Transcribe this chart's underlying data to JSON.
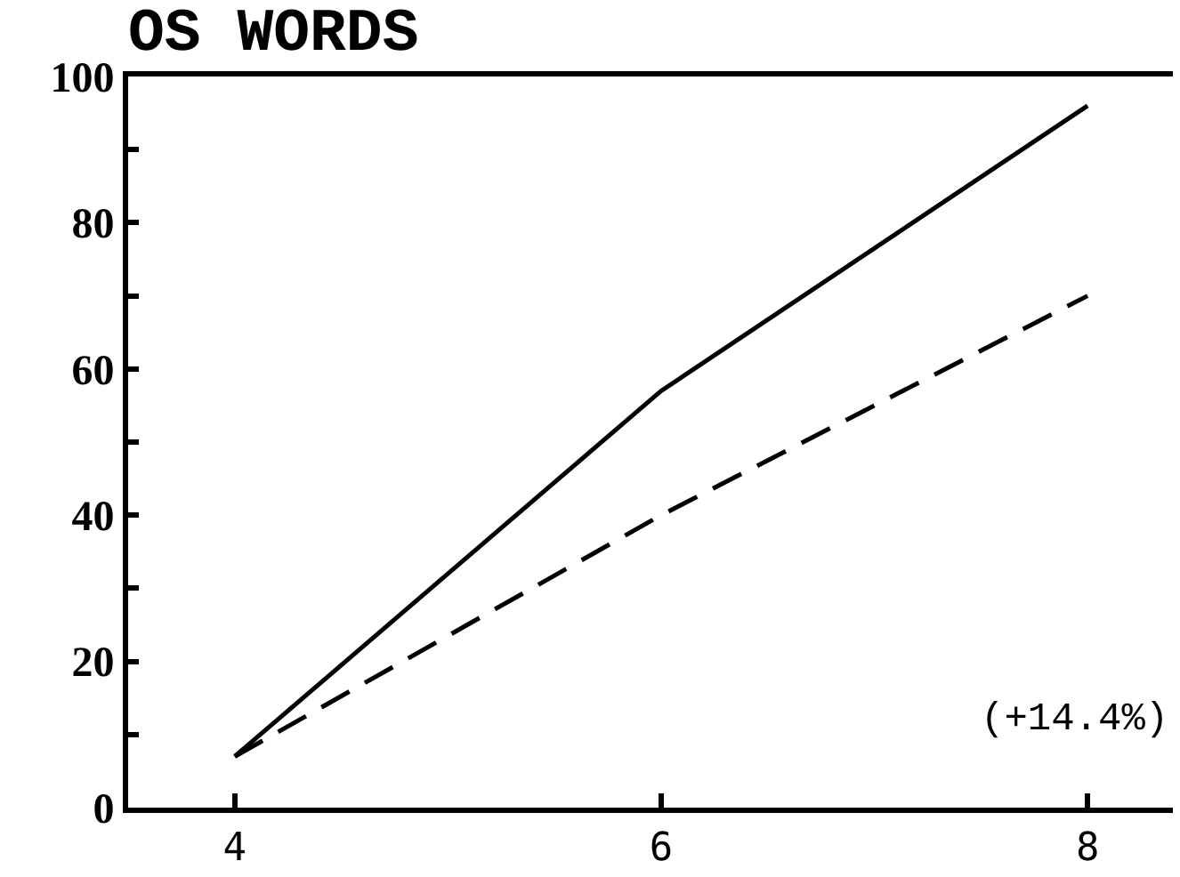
{
  "chart_data": {
    "type": "line",
    "title": "OS WORDS",
    "x": [
      4,
      6,
      8
    ],
    "series": [
      {
        "color": "#000000",
        "line_style": "solid",
        "values": [
          7,
          57,
          96
        ]
      },
      {
        "color": "#000000",
        "line_style": "dashed",
        "values": [
          7,
          40,
          70
        ]
      }
    ],
    "xlim": [
      3.5,
      8.4
    ],
    "xticks": [
      4,
      6,
      8
    ],
    "ylim": [
      0,
      100
    ],
    "yticks": [
      0,
      {
        "value": 10,
        "label": null
      },
      20,
      {
        "value": 30,
        "label": null
      },
      40,
      {
        "value": 50,
        "label": null
      },
      60,
      {
        "value": 70,
        "label": null
      },
      80,
      {
        "value": 90,
        "label": null
      },
      100
    ],
    "annotations": [
      "(+14.4%)"
    ]
  }
}
